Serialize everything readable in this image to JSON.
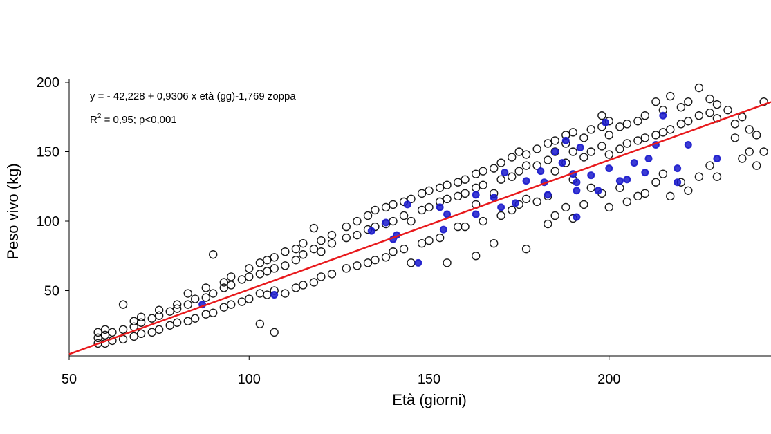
{
  "chart_data": {
    "type": "scatter",
    "x_label": "Età (giorni)",
    "y_label": "Peso vivo (kg)",
    "annotations": {
      "equation": "y = - 42,228 + 0,9306 x età (gg)-1,769 zoppa",
      "r2_prefix": "R",
      "r2_sup": "2",
      "r2_rest": " = 0,95; p<0,001"
    },
    "xlim": [
      50,
      245
    ],
    "ylim": [
      3,
      200
    ],
    "xticks": [
      50,
      100,
      150,
      200
    ],
    "yticks": [
      50,
      100,
      150,
      200
    ],
    "series": [
      {
        "type": "scatter",
        "color": "#000000",
        "x": [
          58,
          58,
          58,
          60,
          60,
          60,
          62,
          62,
          65,
          65,
          65,
          68,
          68,
          68,
          70,
          70,
          70,
          73,
          73,
          75,
          75,
          75,
          78,
          78,
          80,
          80,
          80,
          83,
          83,
          83,
          85,
          85,
          88,
          88,
          88,
          90,
          90,
          90,
          93,
          93,
          93,
          95,
          95,
          95,
          98,
          98,
          100,
          100,
          100,
          103,
          103,
          103,
          103,
          105,
          105,
          105,
          107,
          107,
          107,
          107,
          110,
          110,
          110,
          113,
          113,
          113,
          115,
          115,
          115,
          118,
          118,
          118,
          120,
          120,
          120,
          123,
          123,
          123,
          127,
          127,
          127,
          130,
          130,
          130,
          133,
          133,
          133,
          135,
          135,
          135,
          138,
          138,
          138,
          140,
          140,
          140,
          143,
          143,
          143,
          145,
          145,
          145,
          148,
          148,
          148,
          150,
          150,
          150,
          153,
          153,
          153,
          155,
          155,
          155,
          158,
          158,
          158,
          160,
          160,
          160,
          163,
          163,
          163,
          163,
          165,
          165,
          165,
          168,
          168,
          168,
          170,
          170,
          170,
          173,
          173,
          173,
          175,
          175,
          175,
          177,
          177,
          177,
          177,
          180,
          180,
          180,
          183,
          183,
          183,
          183,
          185,
          185,
          185,
          185,
          188,
          188,
          188,
          188,
          190,
          190,
          190,
          190,
          193,
          193,
          193,
          195,
          195,
          195,
          198,
          198,
          198,
          198,
          200,
          200,
          200,
          200,
          203,
          203,
          203,
          205,
          205,
          205,
          208,
          208,
          208,
          210,
          210,
          210,
          213,
          213,
          213,
          215,
          215,
          215,
          217,
          217,
          217,
          220,
          220,
          220,
          222,
          222,
          222,
          225,
          225,
          225,
          228,
          228,
          228,
          230,
          230,
          230,
          233,
          235,
          235,
          237,
          237,
          239,
          239,
          241,
          241,
          243,
          243
        ],
        "values": [
          12,
          16,
          20,
          12,
          18,
          22,
          14,
          20,
          15,
          22,
          40,
          17,
          24,
          28,
          19,
          27,
          31,
          20,
          30,
          22,
          32,
          36,
          25,
          35,
          27,
          37,
          40,
          28,
          40,
          48,
          30,
          44,
          33,
          45,
          52,
          34,
          48,
          76,
          38,
          52,
          56,
          40,
          54,
          60,
          42,
          58,
          44,
          60,
          66,
          26,
          48,
          62,
          70,
          47,
          64,
          72,
          20,
          50,
          66,
          74,
          48,
          68,
          78,
          52,
          72,
          80,
          54,
          76,
          84,
          56,
          80,
          95,
          60,
          78,
          86,
          62,
          84,
          90,
          66,
          88,
          96,
          68,
          90,
          100,
          70,
          94,
          104,
          72,
          96,
          108,
          74,
          98,
          110,
          78,
          100,
          112,
          80,
          104,
          114,
          70,
          100,
          116,
          84,
          108,
          120,
          86,
          110,
          122,
          88,
          114,
          124,
          70,
          116,
          126,
          96,
          118,
          128,
          96,
          120,
          130,
          75,
          112,
          124,
          134,
          100,
          126,
          136,
          84,
          120,
          138,
          104,
          130,
          142,
          108,
          132,
          146,
          112,
          136,
          150,
          80,
          116,
          140,
          148,
          114,
          140,
          152,
          98,
          118,
          144,
          156,
          104,
          136,
          150,
          158,
          110,
          142,
          156,
          162,
          102,
          130,
          150,
          164,
          112,
          146,
          160,
          124,
          150,
          166,
          120,
          154,
          168,
          176,
          110,
          148,
          162,
          172,
          124,
          152,
          168,
          114,
          156,
          170,
          118,
          158,
          172,
          120,
          160,
          176,
          128,
          162,
          186,
          134,
          164,
          180,
          118,
          166,
          190,
          128,
          170,
          182,
          122,
          172,
          186,
          132,
          176,
          196,
          140,
          178,
          188,
          132,
          174,
          184,
          180,
          160,
          170,
          145,
          175,
          150,
          166,
          140,
          162,
          186,
          150
        ]
      },
      {
        "type": "scatter",
        "color": "#1a1acc",
        "x": [
          87,
          107,
          134,
          138,
          140,
          141,
          144,
          147,
          153,
          154,
          155,
          163,
          163,
          168,
          170,
          171,
          174,
          177,
          181,
          182,
          183,
          185,
          187,
          188,
          190,
          191,
          191,
          192,
          195,
          197,
          199,
          200,
          203,
          205,
          207,
          210,
          211,
          213,
          215,
          219,
          219,
          222,
          230,
          191
        ],
        "values": [
          40,
          47,
          93,
          99,
          87,
          90,
          112,
          70,
          110,
          94,
          105,
          105,
          119,
          117,
          110,
          135,
          113,
          129,
          136,
          128,
          119,
          150,
          142,
          158,
          134,
          128,
          122,
          153,
          133,
          122,
          171,
          138,
          129,
          130,
          142,
          135,
          145,
          155,
          176,
          138,
          128,
          155,
          145,
          103
        ]
      },
      {
        "type": "line",
        "color": "#e8191c",
        "x": [
          50,
          245
        ],
        "values": [
          4.3,
          185.8
        ]
      }
    ]
  }
}
